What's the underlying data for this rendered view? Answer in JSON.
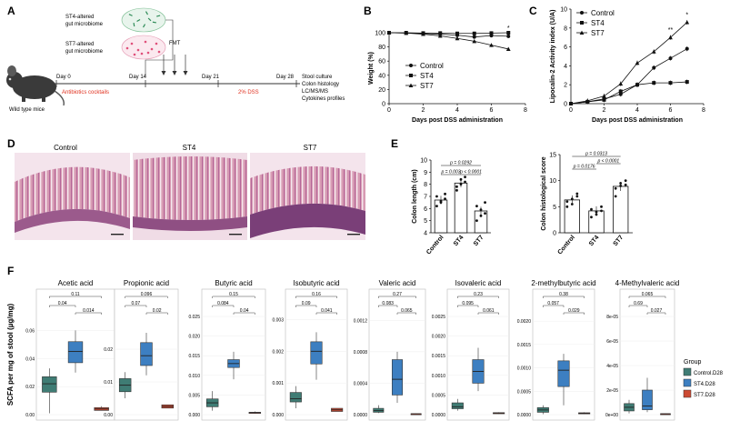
{
  "panel_letters": [
    "A",
    "B",
    "C",
    "D",
    "E",
    "F"
  ],
  "panel_a": {
    "labels": {
      "st4_microbiome": [
        "ST4-altered",
        "gut microbiome"
      ],
      "st7_microbiome": [
        "ST7-altered",
        "gut microbiome"
      ],
      "fmt": "FMT",
      "day0": "Day 0",
      "day14": "Day 14",
      "day21": "Day 21",
      "day28": "Day 28",
      "antibiotics": "Antibiotics cocktails",
      "dss": "2% DSS",
      "outcomes": [
        "Stool culture",
        "Colon histology",
        "LC/MS/MS",
        "Cytokines profiles"
      ],
      "mouse": "Wild type mice"
    },
    "colors": {
      "red": "#e0301e",
      "st4": "#2e8b57",
      "st7": "#e0507a"
    }
  },
  "chart_data": [
    {
      "id": "B",
      "type": "line",
      "title": "",
      "xlabel": "Days post DSS administration",
      "ylabel": "Weight (%)",
      "xlim": [
        0,
        8
      ],
      "ylim": [
        0,
        100
      ],
      "xticks": [
        0,
        2,
        4,
        6,
        8
      ],
      "yticks": [
        0,
        20,
        40,
        60,
        80,
        100
      ],
      "x": [
        0,
        1,
        2,
        3,
        4,
        5,
        6,
        7
      ],
      "series": [
        {
          "name": "Control",
          "marker": "circle",
          "values": [
            100,
            99.5,
            99,
            98,
            96.5,
            94,
            96,
            95
          ]
        },
        {
          "name": "ST4",
          "marker": "square",
          "values": [
            100,
            100,
            99.5,
            99.5,
            99,
            99,
            99.5,
            100
          ]
        },
        {
          "name": "ST7",
          "marker": "triangle",
          "values": [
            100,
            99.5,
            98,
            95.5,
            92,
            88,
            82.5,
            77
          ]
        }
      ],
      "annotations": [
        "*"
      ]
    },
    {
      "id": "C",
      "type": "line",
      "title": "",
      "xlabel": "Days post DSS administration",
      "ylabel": "Lipocalin-2 Activity index (U/A)",
      "xlim": [
        0,
        8
      ],
      "ylim": [
        0,
        10
      ],
      "xticks": [
        0,
        2,
        4,
        6,
        8
      ],
      "yticks": [
        0,
        2,
        4,
        6,
        8,
        10
      ],
      "x": [
        0,
        1,
        2,
        3,
        4,
        5,
        6,
        7
      ],
      "series": [
        {
          "name": "Control",
          "marker": "circle",
          "values": [
            0,
            0.2,
            0.5,
            1.0,
            2.0,
            3.8,
            4.8,
            5.8
          ]
        },
        {
          "name": "ST4",
          "marker": "square",
          "values": [
            0,
            0.2,
            0.4,
            1.3,
            2.0,
            2.2,
            2.2,
            2.3
          ]
        },
        {
          "name": "ST7",
          "marker": "triangle",
          "values": [
            0,
            0.3,
            0.8,
            2.1,
            4.3,
            5.5,
            7.0,
            8.6
          ]
        }
      ],
      "annotations": [
        "**",
        "*"
      ]
    },
    {
      "id": "E1",
      "type": "bar",
      "title": "",
      "xlabel": "",
      "ylabel": "Colon length (cm)",
      "categories": [
        "Control",
        "ST4",
        "ST7"
      ],
      "values": [
        6.7,
        8.1,
        5.8
      ],
      "ylim": [
        4,
        10
      ],
      "yticks": [
        4,
        5,
        6,
        7,
        8,
        9,
        10
      ],
      "points": [
        [
          6.2,
          6.5,
          6.8,
          7.0,
          6.6,
          7.2
        ],
        [
          7.5,
          8.0,
          8.6,
          7.8,
          8.4,
          8.2
        ],
        [
          5.0,
          5.4,
          6.5,
          6.2,
          5.9,
          5.6
        ]
      ],
      "pvalues": [
        "p = 0.0292",
        "p = 0.003",
        "p < 0.0001"
      ]
    },
    {
      "id": "E2",
      "type": "bar",
      "title": "",
      "xlabel": "",
      "ylabel": "Colon histological score",
      "categories": [
        "Control",
        "ST4",
        "ST7"
      ],
      "values": [
        6.3,
        4.2,
        8.9
      ],
      "ylim": [
        0,
        15
      ],
      "yticks": [
        0,
        5,
        10,
        15
      ],
      "points": [
        [
          5.0,
          6.5,
          7.0,
          6.0,
          5.5,
          7.5
        ],
        [
          3.0,
          4.0,
          5.0,
          4.5,
          3.5,
          4.2
        ],
        [
          7.0,
          9.0,
          10.0,
          8.5,
          9.5,
          9.2
        ]
      ],
      "pvalues": [
        "p = 0.0313",
        "p = 0.0176",
        "p < 0.0001"
      ]
    },
    {
      "id": "F",
      "type": "box",
      "ylabel": "SCFA per mg of stool (µg/mg)",
      "groups": [
        "Control.D28",
        "ST4.D28",
        "ST7.D28"
      ],
      "group_colors": [
        "#3f7c74",
        "#3d7fc1",
        "#cc4a33"
      ],
      "legend_title": "Group",
      "subplots": [
        {
          "title": "Acetic acid",
          "ymax": 0.07,
          "yticks": [
            0,
            0.02,
            0.04,
            0.06
          ],
          "ytick_labels": [
            "0.00",
            "0.02",
            "0.04",
            "0.06"
          ],
          "boxes": [
            [
              0.001,
              0.016,
              0.022,
              0.027,
              0.033
            ],
            [
              0.03,
              0.037,
              0.045,
              0.052,
              0.06
            ],
            [
              0.003,
              0.003,
              0.004,
              0.005,
              0.006
            ]
          ],
          "pvalues": [
            "0.11",
            "0.04",
            "0.014"
          ]
        },
        {
          "title": "Propionic acid",
          "ymax": 0.03,
          "yticks": [
            0,
            0.01,
            0.02
          ],
          "ytick_labels": [
            "0.00",
            "0.01",
            "0.02"
          ],
          "boxes": [
            [
              0.005,
              0.007,
              0.009,
              0.011,
              0.013
            ],
            [
              0.012,
              0.015,
              0.018,
              0.022,
              0.025
            ],
            [
              0.002,
              0.002,
              0.0025,
              0.003,
              0.003
            ]
          ],
          "pvalues": [
            "0.096",
            "0.07",
            "0.02"
          ]
        },
        {
          "title": "Butyric acid",
          "ymax": 0.025,
          "yticks": [
            0,
            0.005,
            0.01,
            0.015,
            0.02,
            0.025
          ],
          "ytick_labels": [
            "0.000",
            "0.005",
            "0.010",
            "0.015",
            "0.020",
            "0.025"
          ],
          "boxes": [
            [
              0.001,
              0.002,
              0.003,
              0.004,
              0.006
            ],
            [
              0.009,
              0.012,
              0.013,
              0.014,
              0.016
            ],
            [
              0.0003,
              0.0004,
              0.0005,
              0.0006,
              0.0008
            ]
          ],
          "pvalues": [
            "0.15",
            "0.084",
            "0.04"
          ]
        },
        {
          "title": "Isobutyric acid",
          "ymax": 0.0031,
          "yticks": [
            0,
            0.001,
            0.002,
            0.003
          ],
          "ytick_labels": [
            "0.000",
            "0.001",
            "0.002",
            "0.003"
          ],
          "boxes": [
            [
              0.0002,
              0.0004,
              0.0005,
              0.0007,
              0.0009
            ],
            [
              0.0011,
              0.0016,
              0.002,
              0.0023,
              0.0026
            ],
            [
              0.0001,
              0.0001,
              0.00015,
              0.0002,
              0.0002
            ]
          ],
          "pvalues": [
            "0.16",
            "0.09",
            "0.041"
          ]
        },
        {
          "title": "Valeric acid",
          "ymax": 0.00125,
          "yticks": [
            0,
            0.0004,
            0.0008,
            0.0012
          ],
          "ytick_labels": [
            "0.0000",
            "0.0004",
            "0.0008",
            "0.0012"
          ],
          "boxes": [
            [
              2e-05,
              3e-05,
              5e-05,
              8e-05,
              0.00012
            ],
            [
              0.00015,
              0.00025,
              0.00045,
              0.0007,
              0.0008
            ],
            [
              5e-06,
              8e-06,
              1e-05,
              1.2e-05,
              1.5e-05
            ]
          ],
          "pvalues": [
            "0.27",
            "0.083",
            "0.065"
          ]
        },
        {
          "title": "Isovaleric acid",
          "ymax": 0.0025,
          "yticks": [
            0,
            0.0005,
            0.001,
            0.0015,
            0.002,
            0.0025
          ],
          "ytick_labels": [
            "0.0000",
            "0.0005",
            "0.0010",
            "0.0015",
            "0.0020",
            "0.0025"
          ],
          "boxes": [
            [
              0.0001,
              0.00015,
              0.0002,
              0.0003,
              0.0004
            ],
            [
              0.0006,
              0.0008,
              0.0011,
              0.0014,
              0.0017
            ],
            [
              2e-05,
              3e-05,
              4e-05,
              5e-05,
              6e-05
            ]
          ],
          "pvalues": [
            "0.23",
            "0.095",
            "0.061"
          ]
        },
        {
          "title": "2-methylbutyric acid",
          "ymax": 0.0021,
          "yticks": [
            0,
            0.0005,
            0.001,
            0.0015,
            0.002
          ],
          "ytick_labels": [
            "0.0000",
            "0.0005",
            "0.0010",
            "0.0015",
            "0.0020"
          ],
          "boxes": [
            [
              1e-05,
              5e-05,
              0.0001,
              0.00015,
              0.0002
            ],
            [
              0.0002,
              0.0006,
              0.00095,
              0.00115,
              0.0013
            ],
            [
              1e-05,
              2e-05,
              3e-05,
              4e-05,
              5e-05
            ]
          ],
          "pvalues": [
            "0.38",
            "0.057",
            "0.029"
          ]
        },
        {
          "title": "4-Methylvaleric acid",
          "ymax": 8e-05,
          "yticks": [
            0,
            2e-05,
            4e-05,
            6e-05,
            8e-05
          ],
          "ytick_labels": [
            "0e+00",
            "2e-05",
            "4e-05",
            "6e-05",
            "8e-05"
          ],
          "boxes": [
            [
              1e-06,
              3e-06,
              6e-06,
              9e-06,
              1.2e-05
            ],
            [
              2e-06,
              4e-06,
              7e-06,
              2e-05,
              3e-05
            ],
            [
              2e-07,
              4e-07,
              6e-07,
              8e-07,
              1e-06
            ]
          ],
          "pvalues": [
            "0.065",
            "0.69",
            "0.027"
          ]
        }
      ]
    }
  ],
  "panel_d": {
    "titles": [
      "Control",
      "ST4",
      "ST7"
    ],
    "colors": {
      "tissue": "#c98aa3",
      "lumen": "#f2e6ec",
      "dark": "#7a4a8c"
    }
  }
}
